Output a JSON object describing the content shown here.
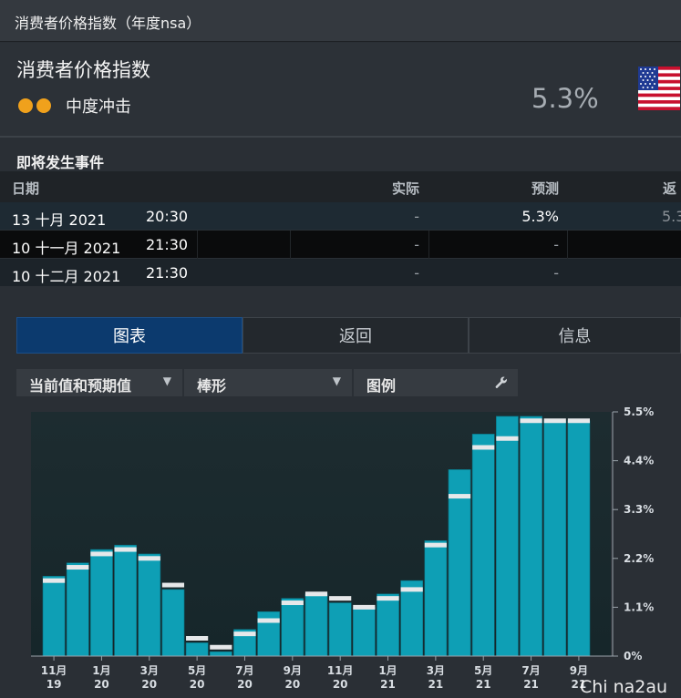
{
  "window": {
    "title": "消费者价格指数（年度nsa）"
  },
  "indicator": {
    "name": "消费者价格指数",
    "impact_label": "中度冲击",
    "actual_value": "5.3%",
    "flag_icon": "us-flag-icon",
    "impact_color": "#f0a11c"
  },
  "events": {
    "title": "即将发生事件",
    "columns": {
      "date": "日期",
      "actual": "实际",
      "forecast": "预测",
      "previous": "返"
    },
    "rows": [
      {
        "date": "13 十月 2021",
        "time": "20:30",
        "actual": "-",
        "forecast": "5.3%",
        "previous": "5.3"
      },
      {
        "date": "10 十一月 2021",
        "time": "21:30",
        "actual": "-",
        "forecast": "-",
        "previous": ""
      },
      {
        "date": "10 十二月 2021",
        "time": "21:30",
        "actual": "-",
        "forecast": "-",
        "previous": ""
      }
    ]
  },
  "tabs": [
    {
      "label": "图表",
      "active": true
    },
    {
      "label": "返回",
      "active": false
    },
    {
      "label": "信息",
      "active": false
    }
  ],
  "controls": {
    "series_select": "当前值和预期值",
    "chart_type_select": "棒形",
    "legend_button": "图例",
    "dropdown_icon": "chevron-down-icon",
    "wrench_icon": "wrench-icon"
  },
  "watermark": "Chi na2au",
  "chart_data": {
    "type": "bar",
    "categories": [
      "11月 19",
      "12月 19",
      "1月 20",
      "2月 20",
      "3月 20",
      "4月 20",
      "5月 20",
      "6月 20",
      "7月 20",
      "8月 20",
      "9月 20",
      "10月 20",
      "11月 20",
      "12月 20",
      "1月 21",
      "2月 21",
      "3月 21",
      "4月 21",
      "5月 21",
      "6月 21",
      "7月 21",
      "8月 21",
      "9月 21"
    ],
    "tick_labels": [
      {
        "month": "11月",
        "year": "19"
      },
      {
        "month": "1月",
        "year": "20"
      },
      {
        "month": "3月",
        "year": "20"
      },
      {
        "month": "5月",
        "year": "20"
      },
      {
        "month": "7月",
        "year": "20"
      },
      {
        "month": "9月",
        "year": "20"
      },
      {
        "month": "11月",
        "year": "20"
      },
      {
        "month": "1月",
        "year": "21"
      },
      {
        "month": "3月",
        "year": "21"
      },
      {
        "month": "5月",
        "year": "21"
      },
      {
        "month": "7月",
        "year": "21"
      },
      {
        "month": "9月",
        "year": "21"
      }
    ],
    "series": [
      {
        "values": [
          1.8,
          2.1,
          2.4,
          2.5,
          2.3,
          1.5,
          0.3,
          0.1,
          0.6,
          1.0,
          1.3,
          1.4,
          1.2,
          1.1,
          1.4,
          1.7,
          2.6,
          4.2,
          5.0,
          5.4,
          5.4,
          5.3,
          5.3
        ]
      },
      {
        "values": [
          1.7,
          2.0,
          2.3,
          2.4,
          2.2,
          1.6,
          0.4,
          0.2,
          0.5,
          0.8,
          1.2,
          1.4,
          1.3,
          1.1,
          1.3,
          1.5,
          2.5,
          3.6,
          4.7,
          4.9,
          5.3,
          5.3,
          5.3
        ]
      }
    ],
    "yticks": [
      "0%",
      "1.1%",
      "2.2%",
      "3.3%",
      "4.4%",
      "5.5%"
    ],
    "ylim": [
      0,
      5.5
    ],
    "bar_color": "#0e9fb5",
    "forecast_marker_color": "#e6e8ea",
    "plot_bg_top": "#1d2c30",
    "plot_bg_bottom": "#16262a"
  }
}
